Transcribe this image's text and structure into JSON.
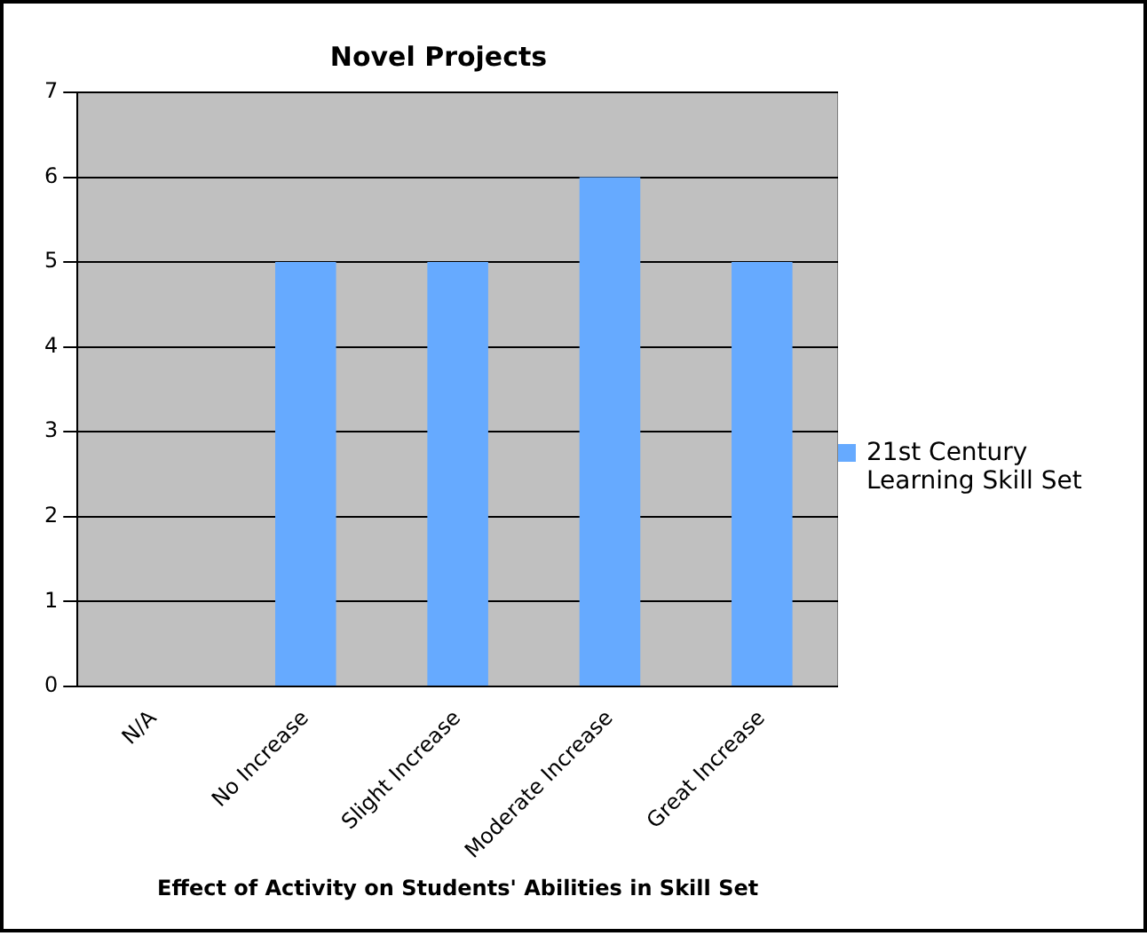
{
  "chart_data": {
    "type": "bar",
    "title": "Novel Projects",
    "xlabel": "Effect of Activity on Students' Abilities in Skill Set",
    "categories": [
      "N/A",
      "No Increase",
      "Slight Increase",
      "Moderate Increase",
      "Great Increase"
    ],
    "series": [
      {
        "name": "21st Century Learning Skill Set",
        "color": "#66aaff",
        "values": [
          0,
          5,
          5,
          6,
          5
        ]
      }
    ],
    "ylim": [
      0,
      7
    ],
    "yticks": [
      0,
      1,
      2,
      3,
      4,
      5,
      6,
      7
    ],
    "grid": "y",
    "legend": "right"
  }
}
